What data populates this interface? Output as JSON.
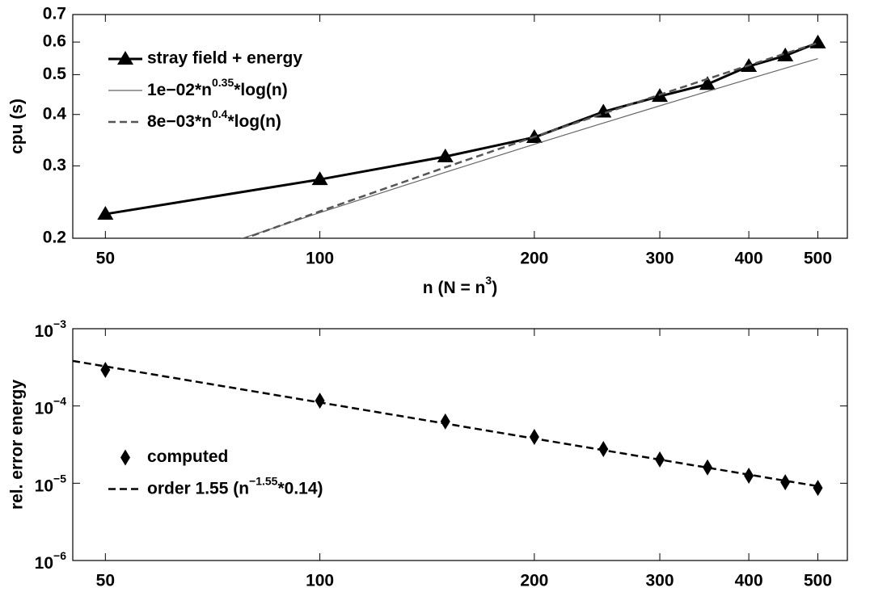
{
  "chart_data": [
    {
      "type": "line",
      "xlog": true,
      "ylog": true,
      "xlim": [
        45,
        550
      ],
      "ylim": [
        0.2,
        0.7
      ],
      "xticks": [
        50,
        100,
        200,
        300,
        400,
        500
      ],
      "yticks": [
        0.2,
        0.3,
        0.4,
        0.5,
        0.6,
        0.7
      ],
      "xlabel": [
        "n (N = n",
        "3",
        ")"
      ],
      "ylabel": "cpu (s)",
      "legend": "upper left",
      "series": [
        {
          "name": "stray field + energy",
          "color": "#000000",
          "line_style": "solid",
          "line_width": 3,
          "marker": "triangle",
          "x": [
            50,
            100,
            150,
            200,
            250,
            300,
            350,
            400,
            450,
            500
          ],
          "values": [
            0.229,
            0.278,
            0.316,
            0.352,
            0.406,
            0.443,
            0.474,
            0.524,
            0.556,
            0.598
          ]
        },
        {
          "name": [
            "1e−02*n",
            "0.35",
            "*log(n)"
          ],
          "color": "#666666",
          "line_style": "solid",
          "line_width": 1.2,
          "marker": "none",
          "x": [
            75,
            100,
            150,
            200,
            250,
            300,
            350,
            400,
            450,
            500
          ],
          "values": [
            0.1957,
            0.2308,
            0.2894,
            0.3385,
            0.3813,
            0.4199,
            0.4552,
            0.4878,
            0.5184,
            0.547
          ]
        },
        {
          "name": [
            "8e−03*n",
            "0.4",
            "*log(n)"
          ],
          "color": "#555555",
          "line_style": "dashed",
          "line_width": 2.5,
          "marker": "none",
          "x": [
            75,
            100,
            150,
            200,
            250,
            300,
            350,
            400,
            450,
            500
          ],
          "values": [
            0.1943,
            0.2325,
            0.2975,
            0.3529,
            0.4021,
            0.4468,
            0.4881,
            0.5266,
            0.5628,
            0.5972
          ]
        }
      ]
    },
    {
      "type": "line",
      "xlog": true,
      "ylog": true,
      "xlim": [
        45,
        550
      ],
      "ylim": [
        1e-06,
        0.001
      ],
      "xticks": [
        50,
        100,
        200,
        300,
        400,
        500
      ],
      "yticks": [
        {
          "value": 1e-06,
          "label": [
            "10",
            "−6"
          ]
        },
        {
          "value": 1e-05,
          "label": [
            "10",
            "−5"
          ]
        },
        {
          "value": 0.0001,
          "label": [
            "10",
            "−4"
          ]
        },
        {
          "value": 0.001,
          "label": [
            "10",
            "−3"
          ]
        }
      ],
      "ylabel": "rel. error energy",
      "legend": "center left",
      "series": [
        {
          "name": "computed",
          "color": "#000000",
          "line_style": "none",
          "line_width": 0,
          "marker": "diamond",
          "x": [
            50,
            100,
            150,
            200,
            250,
            300,
            350,
            400,
            450,
            500
          ],
          "values": [
            0.000293,
            0.000117,
            6.3e-05,
            3.98e-05,
            2.77e-05,
            2.03e-05,
            1.6e-05,
            1.25e-05,
            1.03e-05,
            8.7e-06
          ]
        },
        {
          "name": [
            "order 1.55 (n",
            "−1.55",
            "*0.14)"
          ],
          "color": "#000000",
          "line_style": "dashed",
          "line_width": 2.5,
          "marker": "none",
          "x": [
            45,
            500
          ],
          "values": [
            0.000383,
            9.15e-06
          ]
        }
      ]
    }
  ]
}
